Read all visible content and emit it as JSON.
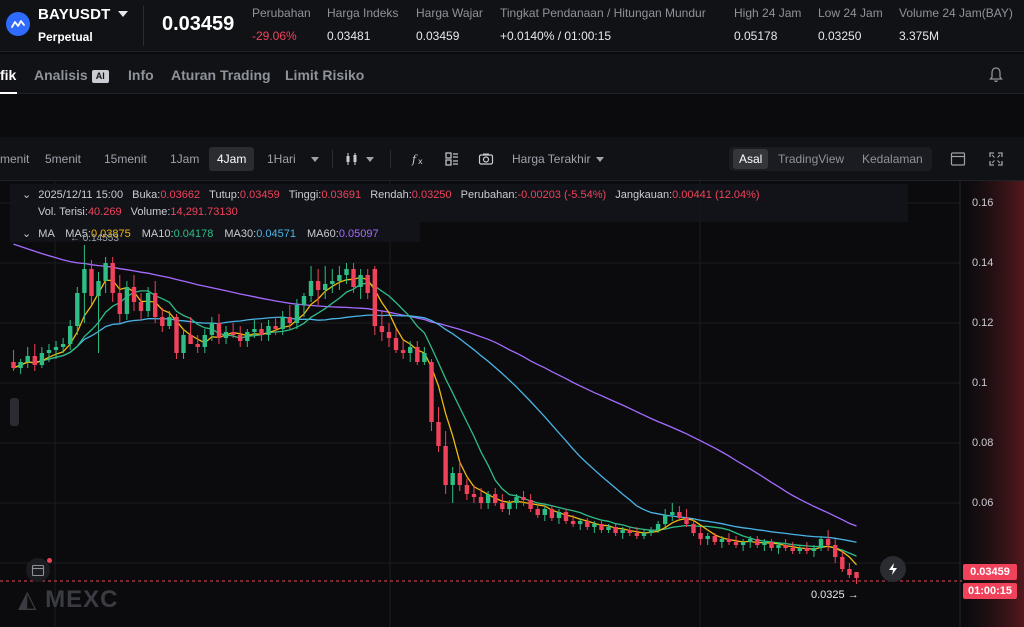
{
  "header": {
    "symbol": "BAYUSDT",
    "contract_type": "Perpetual",
    "last_price": "0.03459",
    "stats": [
      {
        "label": "Perubahan",
        "value": "-29.06%",
        "color": "#f0425b"
      },
      {
        "label": "Harga Indeks",
        "value": "0.03481"
      },
      {
        "label": "Harga Wajar",
        "value": "0.03459"
      },
      {
        "label": "Tingkat Pendanaan / Hitungan Mundur",
        "value": "+0.0140% / 01:00:15"
      },
      {
        "label": "High 24 Jam",
        "value": "0.05178"
      },
      {
        "label": "Low 24 Jam",
        "value": "0.03250"
      },
      {
        "label": "Volume 24 Jam(BAY)",
        "value": "3.375M"
      }
    ]
  },
  "tabs": [
    {
      "label": "fik",
      "active": true
    },
    {
      "label": "Analisis",
      "badge": "AI"
    },
    {
      "label": "Info"
    },
    {
      "label": "Aturan Trading"
    },
    {
      "label": "Limit Risiko"
    }
  ],
  "toolbar": {
    "intervals": [
      {
        "label": "menit"
      },
      {
        "label": "5menit"
      },
      {
        "label": "15menit"
      },
      {
        "label": "1Jam"
      },
      {
        "label": "4Jam",
        "active": true
      },
      {
        "label": "1Hari"
      }
    ],
    "price_type": "Harga Terakhir",
    "views": [
      {
        "label": "Asal",
        "active": true
      },
      {
        "label": "TradingView"
      },
      {
        "label": "Kedalaman"
      }
    ]
  },
  "ohlc": {
    "datetime": "2025/12/11 15:00",
    "open_label": "Buka:",
    "open": "0.03662",
    "close_label": "Tutup:",
    "close": "0.03459",
    "high_label": "Tinggi:",
    "high": "0.03691",
    "low_label": "Rendah:",
    "low": "0.03250",
    "change_label": "Perubahan:",
    "change": "-0.00203 (-5.54%)",
    "range_label": "Jangkauan:",
    "range": "0.00441 (12.04%)",
    "vol_filled_label": "Vol. Terisi:",
    "vol_filled": "40.269",
    "volume_label": "Volume:",
    "volume": "14,291.73130"
  },
  "ma": {
    "label": "MA",
    "ma5_label": "MA5:",
    "ma5": "0.03875",
    "ma10_label": "MA10:",
    "ma10": "0.04178",
    "ma30_label": "MA30:",
    "ma30": "0.04571",
    "ma60_label": "MA60:",
    "ma60": "0.05097"
  },
  "chart_data": {
    "type": "candlestick",
    "y_ticks": [
      "0.16",
      "0.14",
      "0.12",
      "0.1",
      "0.08",
      "0.06"
    ],
    "ylim": [
      0.028,
      0.168
    ],
    "high_marker": "0.14553",
    "low_marker": "0.0325",
    "current_price_label": "0.03459",
    "countdown_label": "01:00:15",
    "colors": {
      "up": "#2ebd85",
      "down": "#f0425b",
      "ma5": "#f0b90b",
      "ma10": "#2ebd85",
      "ma30": "#4ab4e6",
      "ma60": "#a66bff"
    },
    "candles": [
      [
        0.107,
        0.111,
        0.104,
        0.105
      ],
      [
        0.105,
        0.108,
        0.103,
        0.107
      ],
      [
        0.107,
        0.112,
        0.105,
        0.109
      ],
      [
        0.109,
        0.113,
        0.104,
        0.106
      ],
      [
        0.106,
        0.112,
        0.105,
        0.11
      ],
      [
        0.11,
        0.113,
        0.107,
        0.111
      ],
      [
        0.111,
        0.114,
        0.108,
        0.112
      ],
      [
        0.112,
        0.115,
        0.11,
        0.113
      ],
      [
        0.113,
        0.121,
        0.111,
        0.119
      ],
      [
        0.119,
        0.132,
        0.116,
        0.13
      ],
      [
        0.13,
        0.146,
        0.12,
        0.138
      ],
      [
        0.138,
        0.141,
        0.126,
        0.129
      ],
      [
        0.129,
        0.137,
        0.11,
        0.134
      ],
      [
        0.134,
        0.142,
        0.13,
        0.14
      ],
      [
        0.14,
        0.142,
        0.127,
        0.13
      ],
      [
        0.13,
        0.136,
        0.12,
        0.123
      ],
      [
        0.123,
        0.134,
        0.121,
        0.132
      ],
      [
        0.132,
        0.136,
        0.124,
        0.127
      ],
      [
        0.127,
        0.13,
        0.121,
        0.124
      ],
      [
        0.124,
        0.132,
        0.122,
        0.13
      ],
      [
        0.13,
        0.134,
        0.12,
        0.122
      ],
      [
        0.122,
        0.125,
        0.117,
        0.119
      ],
      [
        0.119,
        0.124,
        0.118,
        0.122
      ],
      [
        0.122,
        0.123,
        0.108,
        0.11
      ],
      [
        0.11,
        0.118,
        0.108,
        0.116
      ],
      [
        0.116,
        0.122,
        0.114,
        0.113
      ],
      [
        0.113,
        0.116,
        0.11,
        0.112
      ],
      [
        0.112,
        0.118,
        0.11,
        0.116
      ],
      [
        0.116,
        0.122,
        0.114,
        0.12
      ],
      [
        0.12,
        0.123,
        0.113,
        0.115
      ],
      [
        0.115,
        0.119,
        0.113,
        0.117
      ],
      [
        0.117,
        0.12,
        0.115,
        0.116
      ],
      [
        0.116,
        0.119,
        0.112,
        0.114
      ],
      [
        0.114,
        0.118,
        0.112,
        0.117
      ],
      [
        0.117,
        0.121,
        0.115,
        0.118
      ],
      [
        0.118,
        0.12,
        0.114,
        0.116
      ],
      [
        0.116,
        0.121,
        0.114,
        0.119
      ],
      [
        0.119,
        0.122,
        0.116,
        0.118
      ],
      [
        0.118,
        0.124,
        0.116,
        0.122
      ],
      [
        0.122,
        0.126,
        0.118,
        0.12
      ],
      [
        0.12,
        0.128,
        0.118,
        0.126
      ],
      [
        0.126,
        0.13,
        0.122,
        0.129
      ],
      [
        0.129,
        0.139,
        0.127,
        0.134
      ],
      [
        0.134,
        0.138,
        0.126,
        0.131
      ],
      [
        0.131,
        0.139,
        0.128,
        0.133
      ],
      [
        0.133,
        0.138,
        0.13,
        0.134
      ],
      [
        0.134,
        0.139,
        0.131,
        0.136
      ],
      [
        0.136,
        0.14,
        0.133,
        0.138
      ],
      [
        0.138,
        0.14,
        0.13,
        0.132
      ],
      [
        0.132,
        0.138,
        0.128,
        0.136
      ],
      [
        0.136,
        0.138,
        0.128,
        0.13
      ],
      [
        0.138,
        0.139,
        0.116,
        0.119
      ],
      [
        0.119,
        0.124,
        0.114,
        0.117
      ],
      [
        0.117,
        0.12,
        0.112,
        0.115
      ],
      [
        0.115,
        0.118,
        0.11,
        0.111
      ],
      [
        0.111,
        0.114,
        0.108,
        0.11
      ],
      [
        0.11,
        0.114,
        0.107,
        0.112
      ],
      [
        0.112,
        0.114,
        0.106,
        0.107
      ],
      [
        0.107,
        0.112,
        0.106,
        0.11
      ],
      [
        0.107,
        0.108,
        0.084,
        0.087
      ],
      [
        0.087,
        0.092,
        0.077,
        0.079
      ],
      [
        0.079,
        0.084,
        0.063,
        0.066
      ],
      [
        0.066,
        0.072,
        0.06,
        0.07
      ],
      [
        0.07,
        0.074,
        0.064,
        0.066
      ],
      [
        0.066,
        0.068,
        0.061,
        0.063
      ],
      [
        0.063,
        0.066,
        0.06,
        0.062
      ],
      [
        0.062,
        0.065,
        0.058,
        0.06
      ],
      [
        0.06,
        0.064,
        0.058,
        0.063
      ],
      [
        0.063,
        0.065,
        0.059,
        0.06
      ],
      [
        0.06,
        0.063,
        0.057,
        0.058
      ],
      [
        0.058,
        0.061,
        0.056,
        0.06
      ],
      [
        0.06,
        0.063,
        0.058,
        0.062
      ],
      [
        0.062,
        0.064,
        0.059,
        0.061
      ],
      [
        0.061,
        0.063,
        0.057,
        0.058
      ],
      [
        0.058,
        0.06,
        0.055,
        0.056
      ],
      [
        0.056,
        0.059,
        0.054,
        0.058
      ],
      [
        0.058,
        0.059,
        0.054,
        0.055
      ],
      [
        0.055,
        0.058,
        0.053,
        0.057
      ],
      [
        0.057,
        0.058,
        0.053,
        0.054
      ],
      [
        0.054,
        0.056,
        0.052,
        0.053
      ],
      [
        0.053,
        0.055,
        0.051,
        0.054
      ],
      [
        0.054,
        0.055,
        0.051,
        0.052
      ],
      [
        0.052,
        0.054,
        0.05,
        0.053
      ],
      [
        0.053,
        0.054,
        0.05,
        0.051
      ],
      [
        0.051,
        0.053,
        0.05,
        0.052
      ],
      [
        0.052,
        0.053,
        0.049,
        0.05
      ],
      [
        0.05,
        0.052,
        0.048,
        0.051
      ],
      [
        0.051,
        0.052,
        0.049,
        0.05
      ],
      [
        0.05,
        0.052,
        0.048,
        0.049
      ],
      [
        0.049,
        0.051,
        0.048,
        0.05
      ],
      [
        0.05,
        0.052,
        0.049,
        0.051
      ],
      [
        0.051,
        0.054,
        0.05,
        0.053
      ],
      [
        0.053,
        0.058,
        0.052,
        0.056
      ],
      [
        0.056,
        0.06,
        0.054,
        0.057
      ],
      [
        0.057,
        0.059,
        0.054,
        0.055
      ],
      [
        0.055,
        0.058,
        0.052,
        0.053
      ],
      [
        0.053,
        0.055,
        0.049,
        0.05
      ],
      [
        0.05,
        0.052,
        0.046,
        0.048
      ],
      [
        0.048,
        0.05,
        0.046,
        0.049
      ],
      [
        0.049,
        0.05,
        0.046,
        0.047
      ],
      [
        0.047,
        0.049,
        0.045,
        0.048
      ],
      [
        0.048,
        0.05,
        0.046,
        0.047
      ],
      [
        0.047,
        0.049,
        0.045,
        0.046
      ],
      [
        0.046,
        0.048,
        0.044,
        0.047
      ],
      [
        0.047,
        0.049,
        0.045,
        0.048
      ],
      [
        0.048,
        0.049,
        0.045,
        0.046
      ],
      [
        0.046,
        0.048,
        0.044,
        0.047
      ],
      [
        0.047,
        0.048,
        0.044,
        0.045
      ],
      [
        0.045,
        0.047,
        0.043,
        0.046
      ],
      [
        0.046,
        0.048,
        0.044,
        0.045
      ],
      [
        0.045,
        0.047,
        0.043,
        0.044
      ],
      [
        0.044,
        0.046,
        0.043,
        0.045
      ],
      [
        0.045,
        0.047,
        0.043,
        0.044
      ],
      [
        0.044,
        0.046,
        0.042,
        0.045
      ],
      [
        0.045,
        0.049,
        0.044,
        0.048
      ],
      [
        0.048,
        0.051,
        0.044,
        0.046
      ],
      [
        0.046,
        0.048,
        0.04,
        0.042
      ],
      [
        0.042,
        0.044,
        0.037,
        0.038
      ],
      [
        0.038,
        0.04,
        0.035,
        0.036
      ],
      [
        0.037,
        0.037,
        0.033,
        0.035
      ]
    ]
  }
}
